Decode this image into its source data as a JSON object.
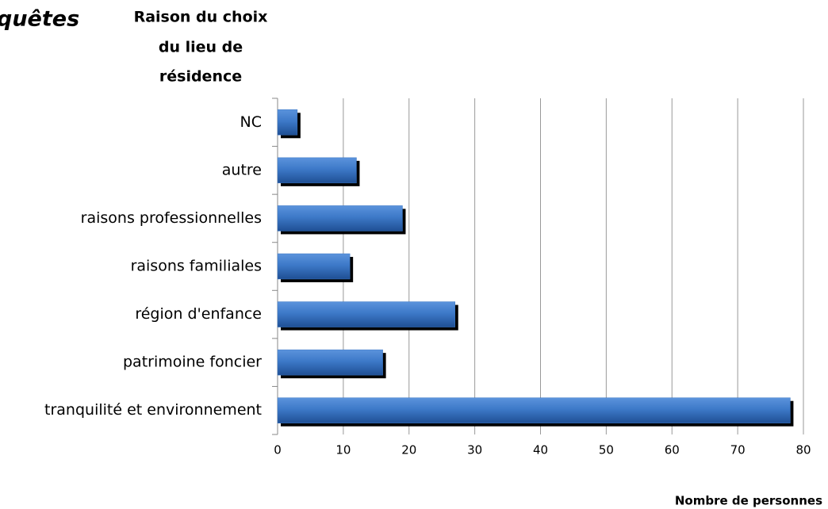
{
  "chart_data": {
    "type": "bar",
    "orientation": "horizontal",
    "annotation": "quêtes",
    "title_lines": [
      "Raison du choix",
      "du lieu de",
      "résidence"
    ],
    "x_label": "Nombre de personnes",
    "categories": [
      "NC",
      "autre",
      "raisons professionnelles",
      "raisons familiales",
      "région d'enfance",
      "patrimoine foncier",
      "tranquilité et environnement"
    ],
    "values": [
      3,
      12,
      19,
      11,
      27,
      16,
      78
    ],
    "color": "#3a76c4",
    "xlim": [
      0,
      80
    ],
    "xticks": [
      0,
      10,
      20,
      30,
      40,
      50,
      60,
      70,
      80
    ],
    "grid": true
  }
}
